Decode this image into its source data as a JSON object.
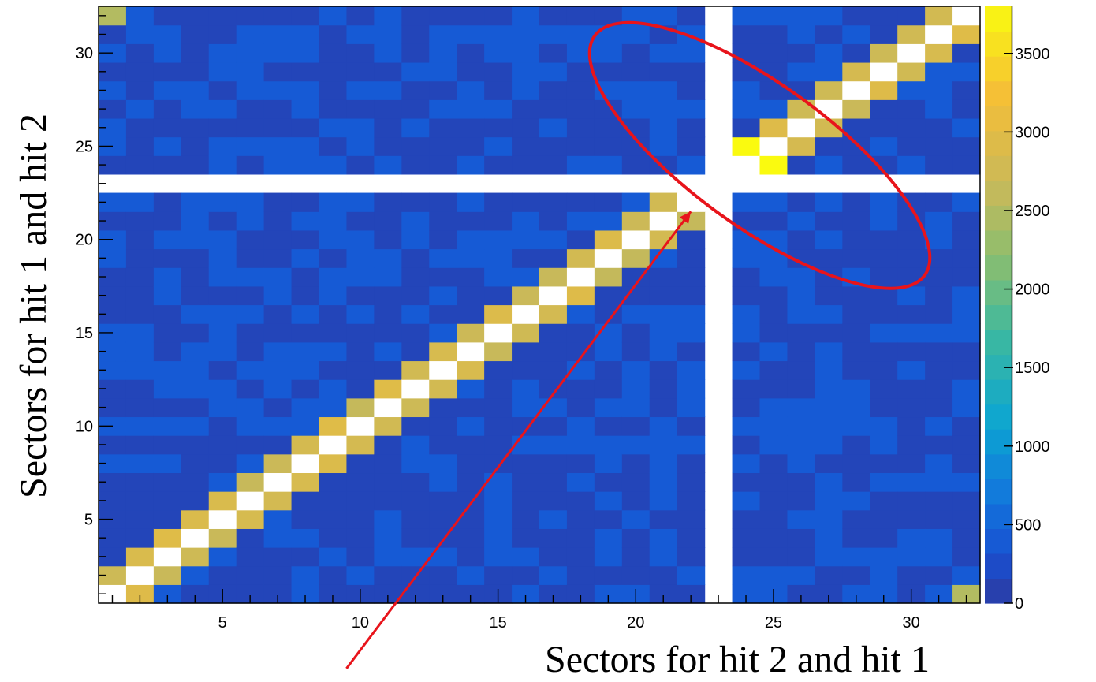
{
  "chart_data": {
    "type": "heatmap",
    "title": "",
    "xlabel": "Sectors for hit 2 and hit 1",
    "ylabel": "Sectors for hit 1 and hit 2",
    "xlim": [
      0.5,
      32.5
    ],
    "ylim": [
      0.5,
      32.5
    ],
    "x_ticks": [
      5,
      10,
      15,
      20,
      25,
      30
    ],
    "y_ticks": [
      5,
      10,
      15,
      20,
      25,
      30
    ],
    "grid": false,
    "colorbar": {
      "range": [
        0,
        3800
      ],
      "ticks": [
        "0",
        "500",
        "1000",
        "1500",
        "2000",
        "2500",
        "3000",
        "3500"
      ],
      "tick_values": [
        0,
        500,
        1000,
        1500,
        2000,
        2500,
        3000,
        3500
      ]
    },
    "empty_row": 23,
    "empty_column": 23,
    "background_levels": {
      "low": 150,
      "mid": 400
    },
    "diagonal_value_range": [
      2400,
      3800
    ],
    "max_cells": [
      {
        "x": 24,
        "y": 25,
        "value": 3800
      },
      {
        "x": 25,
        "y": 24,
        "value": 3800
      }
    ],
    "annotations": [
      {
        "type": "ellipse",
        "color": "#e8141b",
        "description": "highlight",
        "center": [
          24.5,
          24.5
        ]
      },
      {
        "type": "arrow",
        "color": "#e8141b",
        "from": [
          9.5,
          -3.0
        ],
        "to": [
          22.0,
          21.5
        ]
      }
    ]
  }
}
